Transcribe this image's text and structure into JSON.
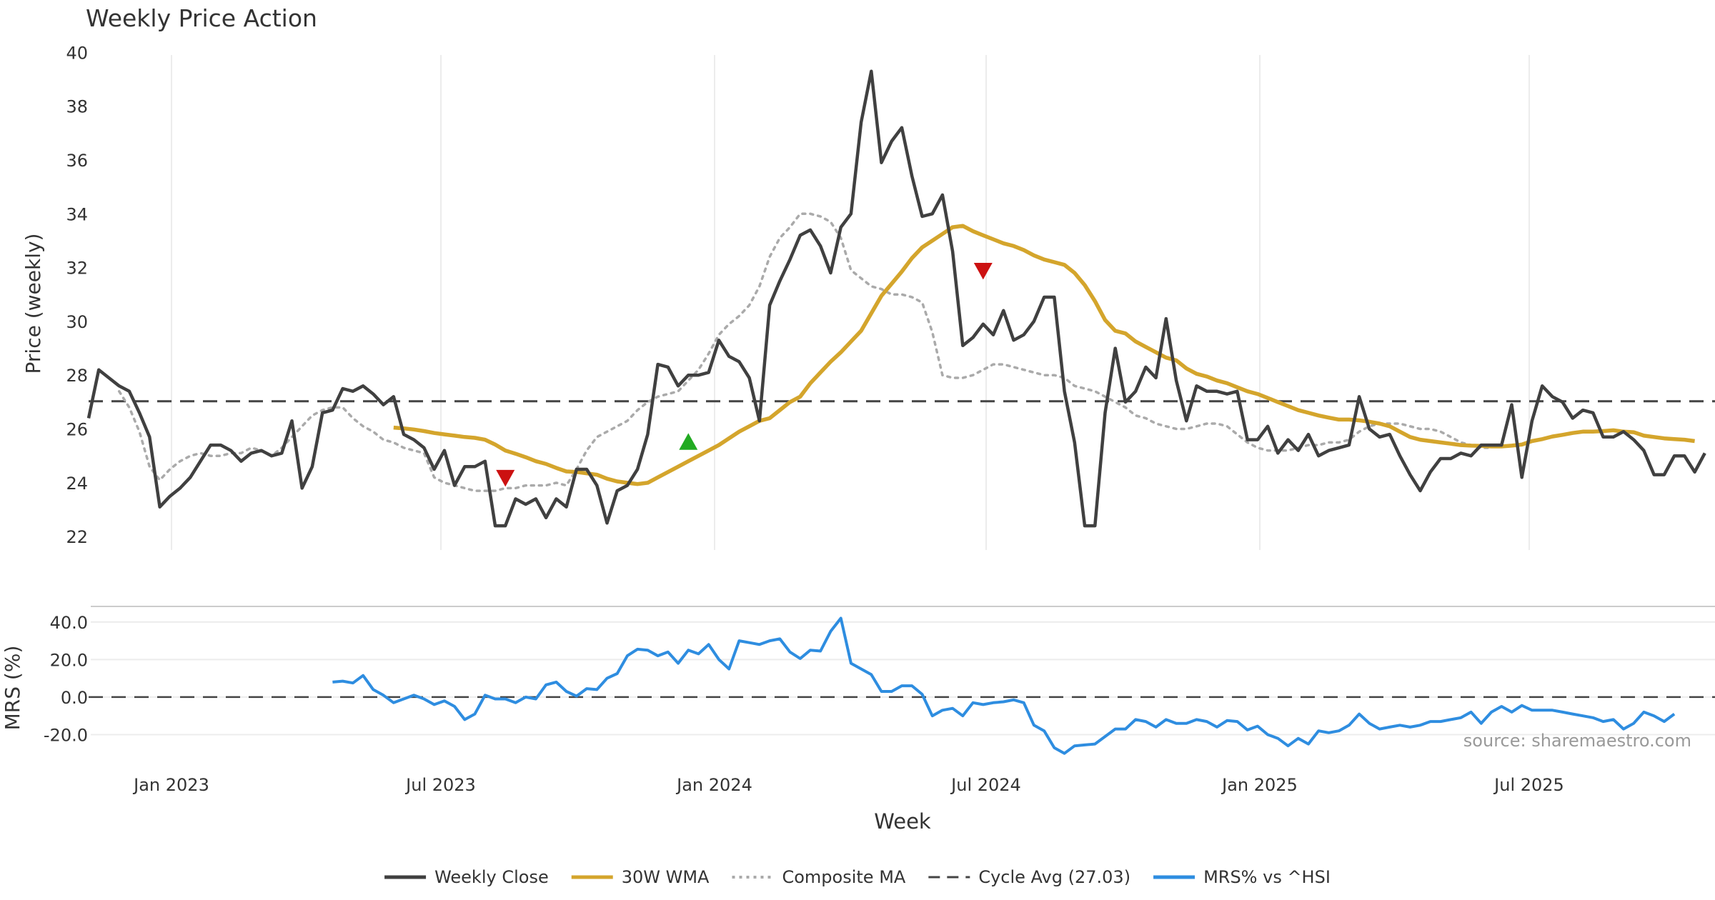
{
  "chart_data": [
    {
      "type": "line",
      "title": "Weekly Price Action",
      "ylabel": "Price (weekly)",
      "xlabel": "Week",
      "ylim": [
        21.5,
        40.3
      ],
      "y_ticks": [
        22,
        24,
        26,
        28,
        30,
        32,
        34,
        36,
        38,
        40
      ],
      "x_ticks": [
        "Jan 2023",
        "Jul 2023",
        "Jan 2024",
        "Jul 2024",
        "Jan 2025",
        "Jul 2025"
      ],
      "grid": "vertical",
      "cycle_avg": 27.03,
      "series": [
        {
          "name": "Weekly Close",
          "color": "#404040",
          "style": "solid",
          "start_week": 0,
          "values": [
            26.4,
            28.2,
            27.9,
            27.6,
            27.4,
            26.6,
            25.7,
            23.1,
            23.5,
            23.8,
            24.2,
            24.8,
            25.4,
            25.4,
            25.2,
            24.8,
            25.1,
            25.2,
            25.0,
            25.1,
            26.3,
            23.8,
            24.6,
            26.6,
            26.7,
            27.5,
            27.4,
            27.6,
            27.3,
            26.9,
            27.2,
            25.8,
            25.6,
            25.3,
            24.5,
            25.2,
            23.9,
            24.6,
            24.6,
            24.8,
            22.4,
            22.4,
            23.4,
            23.2,
            23.4,
            22.7,
            23.4,
            23.1,
            24.5,
            24.5,
            23.9,
            22.5,
            23.7,
            23.9,
            24.5,
            25.8,
            28.4,
            28.3,
            27.6,
            28.0,
            28.0,
            28.1,
            29.3,
            28.7,
            28.5,
            27.9,
            26.3,
            30.6,
            31.5,
            32.3,
            33.2,
            33.4,
            32.8,
            31.8,
            33.5,
            34.0,
            37.4,
            39.3,
            35.9,
            36.7,
            37.2,
            35.4,
            33.9,
            34.0,
            34.7,
            32.6,
            29.1,
            29.4,
            29.9,
            29.5,
            30.4,
            29.3,
            29.5,
            30.0,
            30.9,
            30.9,
            27.4,
            25.5,
            22.4,
            22.4,
            26.6,
            29.0,
            27.0,
            27.4,
            28.3,
            27.9,
            30.1,
            27.8,
            26.3,
            27.6,
            27.4,
            27.4,
            27.3,
            27.4,
            25.6,
            25.6,
            26.1,
            25.1,
            25.6,
            25.2,
            25.8,
            25.0,
            25.2,
            25.3,
            25.4,
            27.2,
            26.0,
            25.7,
            25.8,
            25.0,
            24.3,
            23.7,
            24.4,
            24.9,
            24.9,
            25.1,
            25.0,
            25.4,
            25.4,
            25.4,
            26.9,
            24.2,
            26.3,
            27.6,
            27.2,
            27.0,
            26.4,
            26.7,
            26.6,
            25.7,
            25.7,
            25.9,
            25.6,
            25.2,
            24.3,
            24.3,
            25.0,
            25.0,
            24.4,
            25.1
          ]
        },
        {
          "name": "30W WMA",
          "color": "#d4a52c",
          "style": "solid",
          "start_week": 30,
          "values": [
            26.05,
            26.02,
            25.98,
            25.92,
            25.85,
            25.8,
            25.75,
            25.7,
            25.67,
            25.6,
            25.42,
            25.2,
            25.08,
            24.95,
            24.8,
            24.7,
            24.55,
            24.42,
            24.4,
            24.35,
            24.3,
            24.15,
            24.05,
            24.0,
            23.95,
            24.0,
            24.2,
            24.4,
            24.6,
            24.8,
            25.0,
            25.2,
            25.4,
            25.65,
            25.9,
            26.1,
            26.3,
            26.4,
            26.7,
            27.0,
            27.2,
            27.7,
            28.1,
            28.5,
            28.85,
            29.25,
            29.65,
            30.3,
            30.95,
            31.4,
            31.85,
            32.35,
            32.75,
            33.0,
            33.25,
            33.5,
            33.55,
            33.35,
            33.2,
            33.05,
            32.9,
            32.8,
            32.65,
            32.45,
            32.3,
            32.2,
            32.1,
            31.8,
            31.35,
            30.75,
            30.05,
            29.65,
            29.55,
            29.25,
            29.05,
            28.85,
            28.65,
            28.55,
            28.25,
            28.05,
            27.95,
            27.8,
            27.7,
            27.55,
            27.4,
            27.3,
            27.15,
            27.0,
            26.85,
            26.7,
            26.6,
            26.5,
            26.42,
            26.35,
            26.35,
            26.32,
            26.27,
            26.2,
            26.1,
            25.9,
            25.7,
            25.6,
            25.55,
            25.5,
            25.45,
            25.4,
            25.38,
            25.37,
            25.35,
            25.35,
            25.38,
            25.42,
            25.55,
            25.62,
            25.72,
            25.78,
            25.85,
            25.9,
            25.9,
            25.92,
            25.95,
            25.9,
            25.88,
            25.75,
            25.7,
            25.65,
            25.62,
            25.6,
            25.55
          ]
        },
        {
          "name": "Composite MA",
          "color": "#aaaaaa",
          "style": "dotted",
          "start_week": 3,
          "values": [
            27.4,
            26.8,
            25.9,
            24.6,
            24.1,
            24.5,
            24.8,
            25.0,
            25.1,
            25.0,
            25.0,
            25.1,
            25.1,
            25.3,
            25.2,
            25.0,
            25.3,
            25.7,
            26.1,
            26.5,
            26.7,
            26.8,
            26.8,
            26.4,
            26.1,
            25.9,
            25.6,
            25.5,
            25.3,
            25.2,
            25.1,
            24.2,
            24.0,
            23.9,
            23.8,
            23.7,
            23.7,
            23.7,
            23.8,
            23.8,
            23.9,
            23.9,
            23.9,
            24.0,
            23.9,
            24.5,
            25.2,
            25.7,
            25.9,
            26.1,
            26.3,
            26.7,
            27.0,
            27.2,
            27.3,
            27.4,
            27.8,
            28.2,
            28.8,
            29.5,
            29.9,
            30.2,
            30.6,
            31.3,
            32.4,
            33.1,
            33.5,
            34.0,
            34.0,
            33.9,
            33.7,
            33.1,
            31.9,
            31.6,
            31.3,
            31.2,
            31.0,
            31.0,
            30.9,
            30.7,
            29.6,
            28.0,
            27.9,
            27.9,
            28.0,
            28.2,
            28.4,
            28.4,
            28.3,
            28.2,
            28.1,
            28.0,
            28.0,
            27.9,
            27.6,
            27.5,
            27.4,
            27.2,
            27.0,
            26.8,
            26.5,
            26.4,
            26.2,
            26.1,
            26.0,
            26.0,
            26.1,
            26.2,
            26.2,
            26.1,
            25.8,
            25.5,
            25.3,
            25.2,
            25.2,
            25.2,
            25.3,
            25.4,
            25.4,
            25.5,
            25.5,
            25.6,
            25.9,
            26.1,
            26.2,
            26.2,
            26.2,
            26.1,
            26.0,
            26.0,
            25.9,
            25.7,
            25.5,
            25.4,
            25.3,
            25.3
          ]
        }
      ],
      "markers": [
        {
          "type": "sell",
          "color": "#cc1111",
          "week": 41,
          "value": 24.2
        },
        {
          "type": "buy",
          "color": "#22aa22",
          "week": 59,
          "value": 25.5
        },
        {
          "type": "sell",
          "color": "#cc1111",
          "week": 88,
          "value": 31.9
        }
      ]
    },
    {
      "type": "line",
      "ylabel": "MRS (%)",
      "xlabel": "Week",
      "ylim": [
        -32,
        46
      ],
      "y_tick_labels": [
        "40.0",
        "20.0",
        "0.0",
        "-20.0"
      ],
      "y_ticks": [
        40,
        20,
        0,
        -20
      ],
      "zero_line": 0,
      "annotation": "source: sharemaestro.com",
      "series": [
        {
          "name": "MRS% vs ^HSI",
          "color": "#2e8de0",
          "style": "solid",
          "start_week": 24,
          "values": [
            8,
            8.5,
            7.5,
            11.5,
            4,
            1,
            -3,
            -1,
            1,
            -1,
            -4,
            -2,
            -5,
            -12,
            -9,
            1,
            -1,
            -1,
            -3,
            0,
            -1,
            6.5,
            8,
            3,
            0.5,
            4.5,
            4,
            10,
            12.5,
            22,
            25.5,
            25,
            22,
            24,
            18,
            25,
            23,
            28,
            20,
            15,
            30,
            29,
            28,
            30,
            31,
            24,
            20.5,
            25,
            24.5,
            35,
            42,
            18,
            15,
            12,
            3,
            3,
            6,
            6,
            1.5,
            -10,
            -7,
            -6,
            -10,
            -3,
            -4,
            -3,
            -2.5,
            -1.5,
            -3,
            -15,
            -18,
            -27,
            -30,
            -26,
            -25.5,
            -25,
            -21,
            -17,
            -17,
            -12,
            -13,
            -16,
            -12,
            -14,
            -14,
            -12,
            -13,
            -16,
            -12.5,
            -13,
            -17.5,
            -15.5,
            -20,
            -22,
            -26,
            -22,
            -25,
            -18,
            -19,
            -18,
            -15,
            -9,
            -14,
            -17,
            -16,
            -15,
            -16,
            -15,
            -13,
            -13,
            -12,
            -11,
            -8,
            -14,
            -8,
            -5,
            -8,
            -4.5,
            -7,
            -7,
            -7,
            -8,
            -9,
            -10,
            -11,
            -13,
            -12,
            -17,
            -14,
            -8,
            -10,
            -13,
            -9
          ]
        }
      ]
    }
  ],
  "legend": {
    "placement": "bottom",
    "items": [
      {
        "label": "Weekly Close",
        "color": "#404040",
        "style": "solid"
      },
      {
        "label": "30W WMA",
        "color": "#d4a52c",
        "style": "solid"
      },
      {
        "label": "Composite MA",
        "color": "#aaaaaa",
        "style": "dotted"
      },
      {
        "label": "Cycle Avg (27.03)",
        "color": "#444444",
        "style": "dashed"
      },
      {
        "label": "MRS% vs ^HSI",
        "color": "#2e8de0",
        "style": "solid"
      }
    ]
  }
}
